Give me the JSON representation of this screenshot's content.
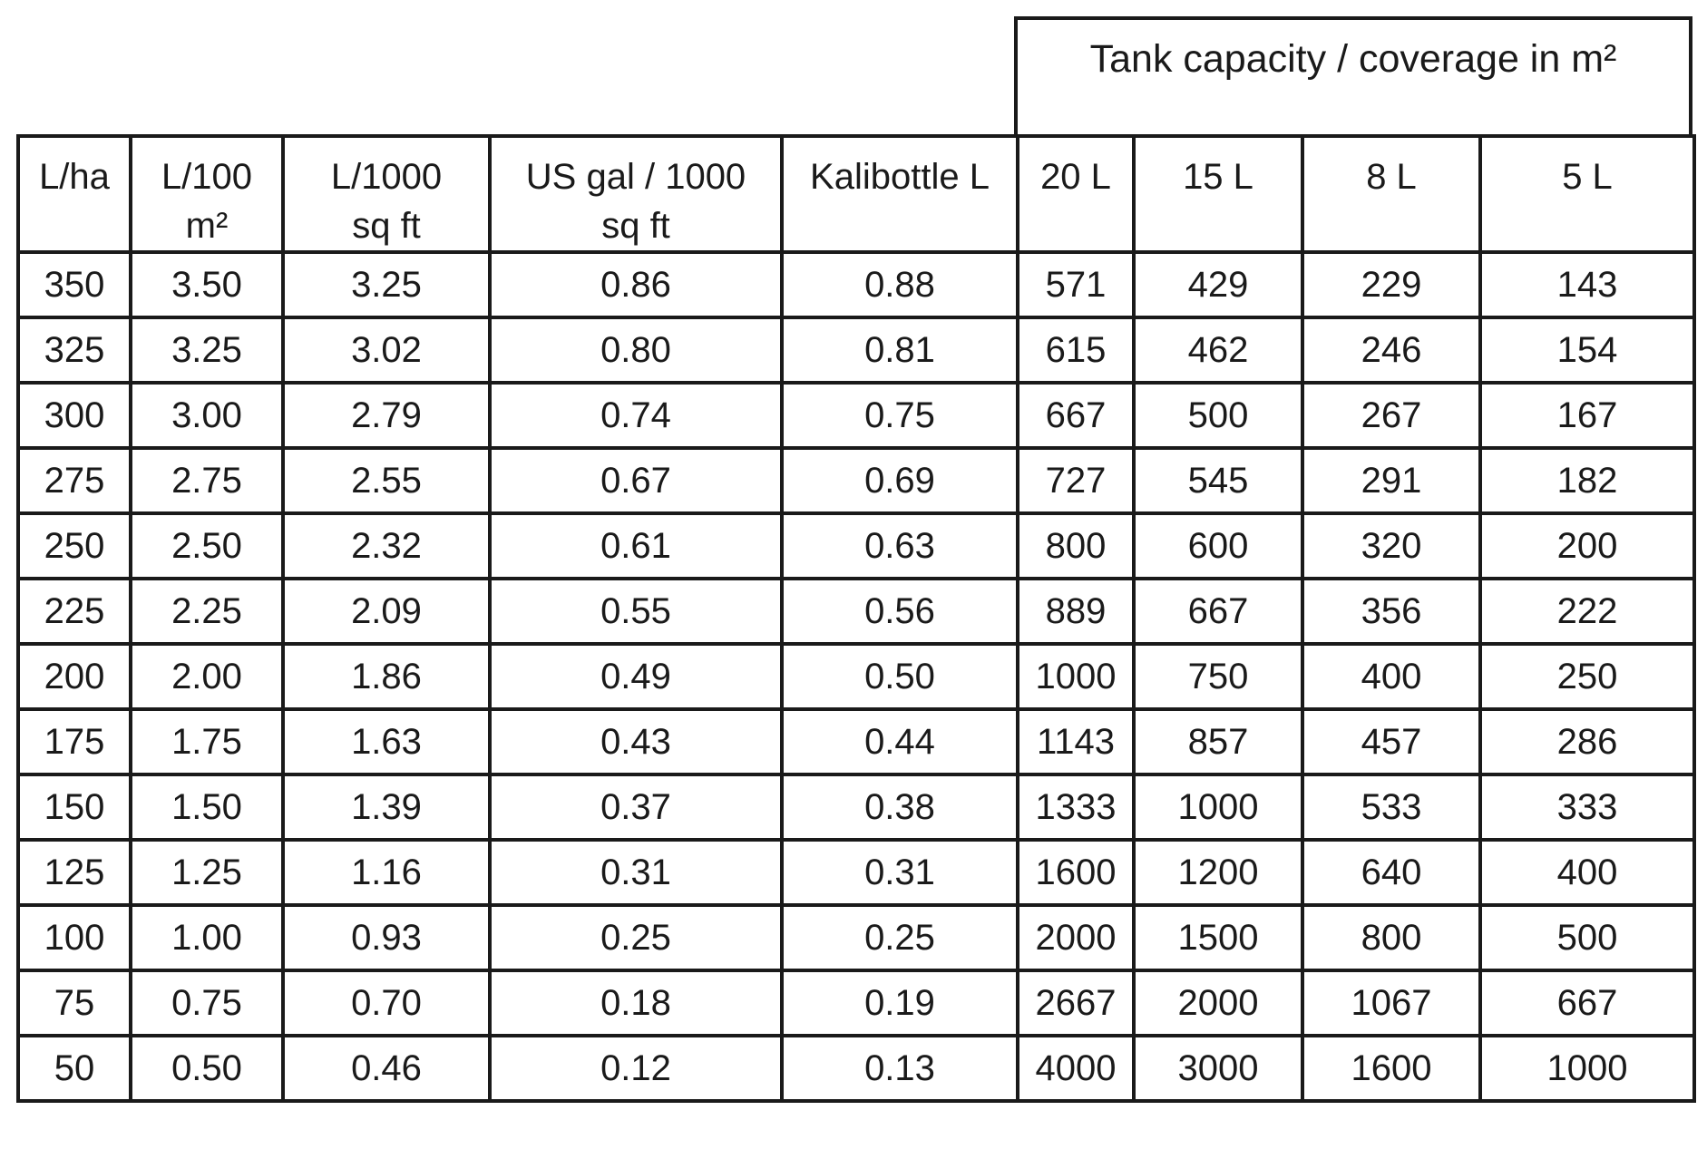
{
  "group_header": "Tank capacity / coverage in m²",
  "columns": [
    {
      "line1": "L/ha",
      "line2": ""
    },
    {
      "line1": "L/100",
      "line2": "m²"
    },
    {
      "line1": "L/1000",
      "line2": "sq ft"
    },
    {
      "line1": "US gal / 1000",
      "line2": "sq ft"
    },
    {
      "line1": "Kalibottle L",
      "line2": ""
    },
    {
      "line1": "20 L",
      "line2": ""
    },
    {
      "line1": "15 L",
      "line2": ""
    },
    {
      "line1": "8 L",
      "line2": ""
    },
    {
      "line1": "5 L",
      "line2": ""
    }
  ],
  "rows": [
    [
      "350",
      "3.50",
      "3.25",
      "0.86",
      "0.88",
      "571",
      "429",
      "229",
      "143"
    ],
    [
      "325",
      "3.25",
      "3.02",
      "0.80",
      "0.81",
      "615",
      "462",
      "246",
      "154"
    ],
    [
      "300",
      "3.00",
      "2.79",
      "0.74",
      "0.75",
      "667",
      "500",
      "267",
      "167"
    ],
    [
      "275",
      "2.75",
      "2.55",
      "0.67",
      "0.69",
      "727",
      "545",
      "291",
      "182"
    ],
    [
      "250",
      "2.50",
      "2.32",
      "0.61",
      "0.63",
      "800",
      "600",
      "320",
      "200"
    ],
    [
      "225",
      "2.25",
      "2.09",
      "0.55",
      "0.56",
      "889",
      "667",
      "356",
      "222"
    ],
    [
      "200",
      "2.00",
      "1.86",
      "0.49",
      "0.50",
      "1000",
      "750",
      "400",
      "250"
    ],
    [
      "175",
      "1.75",
      "1.63",
      "0.43",
      "0.44",
      "1143",
      "857",
      "457",
      "286"
    ],
    [
      "150",
      "1.50",
      "1.39",
      "0.37",
      "0.38",
      "1333",
      "1000",
      "533",
      "333"
    ],
    [
      "125",
      "1.25",
      "1.16",
      "0.31",
      "0.31",
      "1600",
      "1200",
      "640",
      "400"
    ],
    [
      "100",
      "1.00",
      "0.93",
      "0.25",
      "0.25",
      "2000",
      "1500",
      "800",
      "500"
    ],
    [
      "75",
      "0.75",
      "0.70",
      "0.18",
      "0.19",
      "2667",
      "2000",
      "1067",
      "667"
    ],
    [
      "50",
      "0.50",
      "0.46",
      "0.12",
      "0.13",
      "4000",
      "3000",
      "1600",
      "1000"
    ]
  ]
}
